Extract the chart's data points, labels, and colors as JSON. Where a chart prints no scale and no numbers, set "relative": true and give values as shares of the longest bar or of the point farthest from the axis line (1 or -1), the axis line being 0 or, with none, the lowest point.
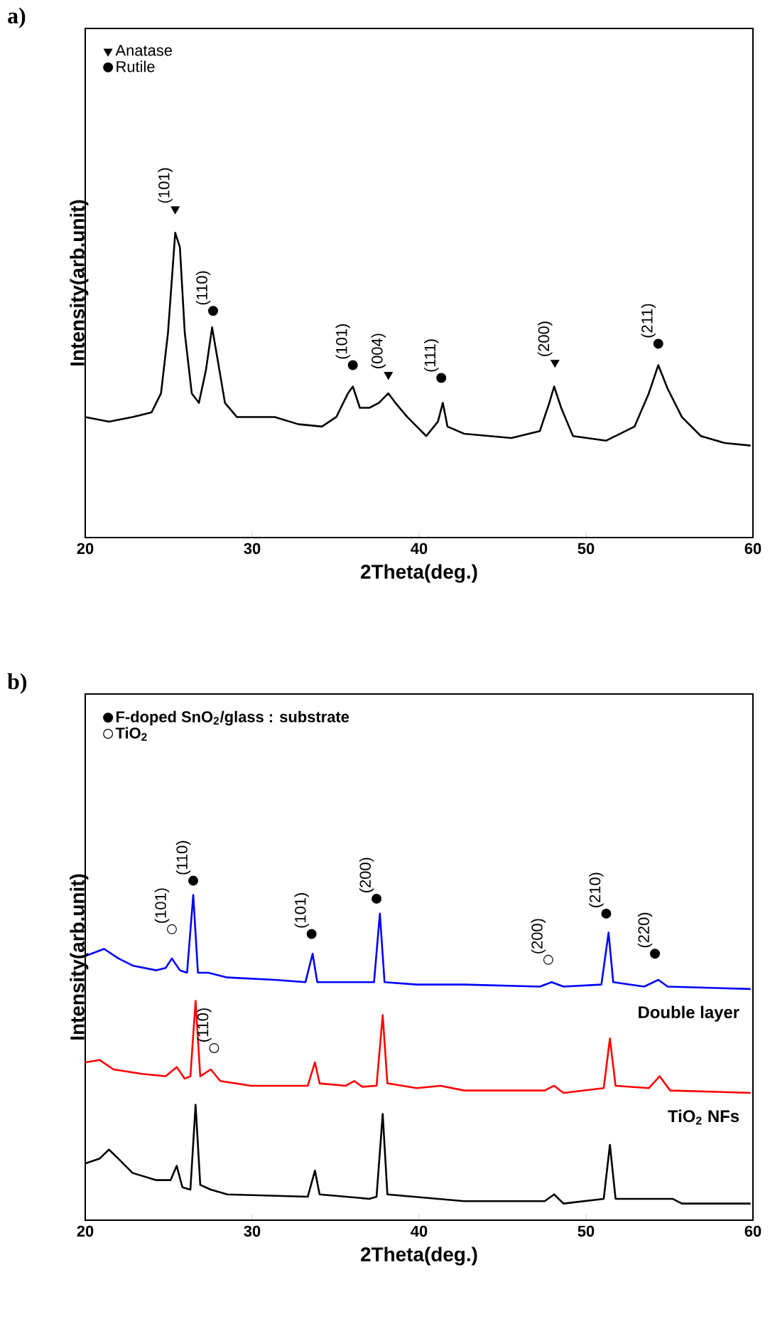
{
  "chart_data": [
    {
      "type": "line",
      "title": "a)",
      "xlabel": "2Theta(deg.)",
      "ylabel": "Intensity(arb.unit)",
      "relative": true,
      "xlim": [
        20,
        60
      ],
      "xticks": [
        20,
        30,
        40,
        50,
        60
      ],
      "legend": "top left",
      "series": [
        {
          "color": "#000000",
          "x": [
            20.0,
            21.42,
            22.84,
            23.97,
            24.54,
            24.96,
            25.39,
            25.67,
            25.96,
            26.38,
            26.81,
            27.23,
            27.6,
            27.94,
            28.37,
            29.08,
            31.35,
            32.77,
            34.18,
            35.04,
            35.74,
            36.03,
            36.45,
            37.02,
            37.59,
            38.16,
            38.58,
            39.29,
            40.43,
            41.13,
            41.42,
            41.7,
            42.7,
            45.53,
            47.23,
            47.8,
            48.09,
            48.51,
            49.22,
            51.21,
            52.91,
            53.76,
            54.33,
            54.89,
            55.74,
            56.88,
            58.3,
            59.86
          ],
          "values": [
            0.367,
            0.353,
            0.367,
            0.381,
            0.439,
            0.625,
            0.928,
            0.884,
            0.625,
            0.439,
            0.41,
            0.51,
            0.64,
            0.539,
            0.41,
            0.367,
            0.367,
            0.345,
            0.338,
            0.367,
            0.439,
            0.46,
            0.395,
            0.395,
            0.41,
            0.439,
            0.41,
            0.367,
            0.309,
            0.353,
            0.41,
            0.338,
            0.316,
            0.303,
            0.324,
            0.41,
            0.46,
            0.395,
            0.309,
            0.295,
            0.338,
            0.439,
            0.525,
            0.453,
            0.367,
            0.309,
            0.288,
            0.28
          ]
        },
        {
          "name": "Anatase",
          "type": "scatter",
          "marker": "triangle",
          "color": "#000000",
          "x": [
            25.39,
            38.16,
            48.14
          ],
          "values": [
            1.0,
            0.496,
            0.533
          ]
        },
        {
          "name": "Rutile",
          "type": "scatter",
          "marker": "circle",
          "color": "#000000",
          "x": [
            27.66,
            36.03,
            41.33,
            54.33
          ],
          "values": [
            0.69,
            0.525,
            0.486,
            0.59
          ]
        }
      ],
      "annotations": [
        {
          "text": "(101)",
          "x": 25.39,
          "y": 1.0
        },
        {
          "text": "(110)",
          "x": 27.66,
          "y": 0.69
        },
        {
          "text": "(101)",
          "x": 36.03,
          "y": 0.525
        },
        {
          "text": "(004)",
          "x": 38.16,
          "y": 0.496
        },
        {
          "text": "(111)",
          "x": 41.33,
          "y": 0.486
        },
        {
          "text": "(200)",
          "x": 48.14,
          "y": 0.533
        },
        {
          "text": "(211)",
          "x": 54.33,
          "y": 0.59
        }
      ]
    },
    {
      "type": "line",
      "title": "b)",
      "xlabel": "2Theta(deg.)",
      "ylabel": "Intensity(arb.unit)",
      "relative": true,
      "xlim": [
        20,
        60
      ],
      "xticks": [
        20,
        30,
        40,
        50,
        60
      ],
      "legend": "top left",
      "series": [
        {
          "name": "Double layer",
          "color": "#0000ff",
          "x": [
            20.0,
            21.13,
            21.99,
            22.84,
            24.26,
            24.82,
            25.19,
            25.67,
            26.1,
            26.47,
            26.75,
            27.38,
            28.51,
            31.35,
            33.19,
            33.62,
            33.9,
            35.6,
            37.3,
            37.65,
            37.93,
            39.86,
            42.7,
            47.23,
            47.94,
            48.65,
            50.92,
            51.35,
            51.63,
            53.48,
            54.33,
            54.89,
            59.86
          ],
          "values": [
            0.778,
            0.799,
            0.771,
            0.75,
            0.736,
            0.743,
            0.771,
            0.736,
            0.729,
            0.958,
            0.729,
            0.729,
            0.715,
            0.708,
            0.701,
            0.785,
            0.701,
            0.701,
            0.701,
            0.903,
            0.701,
            0.694,
            0.694,
            0.688,
            0.701,
            0.688,
            0.694,
            0.847,
            0.701,
            0.688,
            0.708,
            0.688,
            0.681
          ]
        },
        {
          "name": "TiO$_{2}$ NFs",
          "color": "#ff0000",
          "x": [
            20.0,
            20.85,
            21.7,
            23.4,
            24.82,
            25.48,
            25.96,
            26.3,
            26.61,
            26.89,
            27.52,
            28.09,
            29.93,
            33.33,
            33.76,
            34.04,
            35.6,
            36.11,
            36.6,
            37.45,
            37.82,
            38.1,
            39.86,
            41.28,
            42.7,
            47.52,
            48.09,
            48.65,
            51.06,
            51.43,
            51.77,
            53.76,
            54.41,
            55.04,
            59.86
          ],
          "values": [
            0.465,
            0.472,
            0.444,
            0.431,
            0.424,
            0.451,
            0.417,
            0.424,
            0.646,
            0.424,
            0.444,
            0.41,
            0.396,
            0.396,
            0.465,
            0.403,
            0.396,
            0.41,
            0.393,
            0.396,
            0.604,
            0.403,
            0.389,
            0.396,
            0.382,
            0.382,
            0.396,
            0.375,
            0.389,
            0.535,
            0.396,
            0.389,
            0.424,
            0.382,
            0.375
          ]
        },
        {
          "color": "#000000",
          "x": [
            20.0,
            20.85,
            21.42,
            21.99,
            22.84,
            24.26,
            25.11,
            25.48,
            25.82,
            26.3,
            26.61,
            26.89,
            27.52,
            28.51,
            33.33,
            33.76,
            34.04,
            37.02,
            37.45,
            37.82,
            38.1,
            42.7,
            47.52,
            48.09,
            48.65,
            51.06,
            51.43,
            51.77,
            54.04,
            55.18,
            55.74,
            59.86
          ],
          "values": [
            0.167,
            0.181,
            0.208,
            0.181,
            0.139,
            0.118,
            0.118,
            0.16,
            0.097,
            0.09,
            0.34,
            0.104,
            0.09,
            0.076,
            0.069,
            0.146,
            0.076,
            0.063,
            0.069,
            0.313,
            0.076,
            0.056,
            0.056,
            0.076,
            0.049,
            0.063,
            0.222,
            0.063,
            0.063,
            0.063,
            0.049,
            0.049
          ]
        },
        {
          "name": "F-doped  SnO$_{2}$/glass : substrate",
          "type": "scatter",
          "marker": "circle",
          "color": "#000000",
          "x": [
            26.47,
            33.56,
            37.45,
            51.21,
            54.13
          ],
          "values": [
            1.0,
            0.843,
            0.947,
            0.903,
            0.785
          ]
        },
        {
          "name": "TiO$_{2}$",
          "type": "scatter",
          "marker": "circle",
          "color": "#ffffff",
          "x": [
            25.19,
            27.72,
            47.74
          ],
          "values": [
            0.857,
            0.507,
            0.767
          ]
        }
      ],
      "annotations": [
        {
          "text": "(101)",
          "x": 25.19,
          "y": 0.857
        },
        {
          "text": "(110)",
          "x": 26.47,
          "y": 1.0
        },
        {
          "text": "(101)",
          "x": 33.56,
          "y": 0.843
        },
        {
          "text": "(200)",
          "x": 37.45,
          "y": 0.947
        },
        {
          "text": "(200)",
          "x": 47.74,
          "y": 0.767
        },
        {
          "text": "(210)",
          "x": 51.21,
          "y": 0.903
        },
        {
          "text": "(220)",
          "x": 54.13,
          "y": 0.785
        },
        {
          "text": "(110)",
          "x": 27.72,
          "y": 0.507
        }
      ]
    }
  ]
}
